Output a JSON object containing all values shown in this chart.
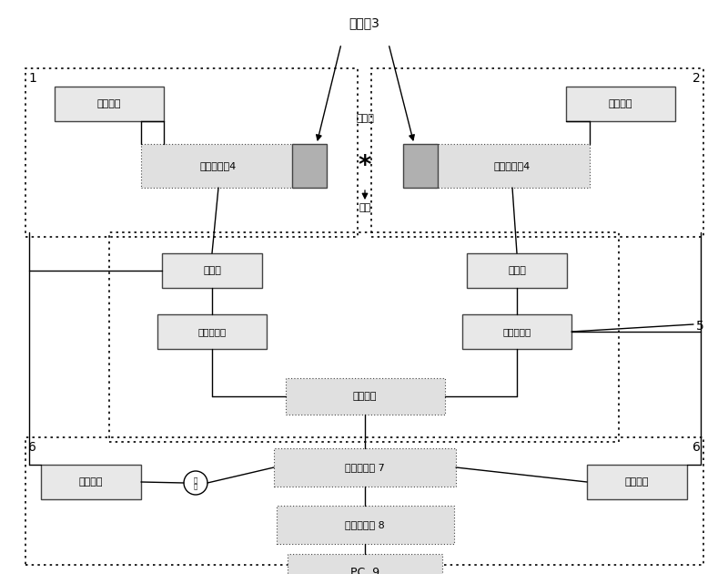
{
  "bg_color": "#ffffff",
  "box_fill_light": "#e8e8e8",
  "box_fill_dotted": "#e0e0e0",
  "box_edge": "#444444",
  "labels": {
    "crystal3": "闪烁体3",
    "source": "放射源",
    "sample": "样品",
    "left_detector": "光电信号加4",
    "right_detector": "光电信号加4",
    "left_amp": "放大器",
    "right_amp": "放大器",
    "left_sca": "单道分析器",
    "right_sca": "单道分析器",
    "coincidence": "符合电路",
    "tac": "时间转换器 7",
    "mca": "多道分析器 8",
    "pc": "PC  9",
    "left_hv": "高压电源",
    "right_hv": "高压电源",
    "left_timer": "定时电路",
    "right_timer": "定时电路"
  },
  "fig_width": 8.0,
  "fig_height": 6.3
}
